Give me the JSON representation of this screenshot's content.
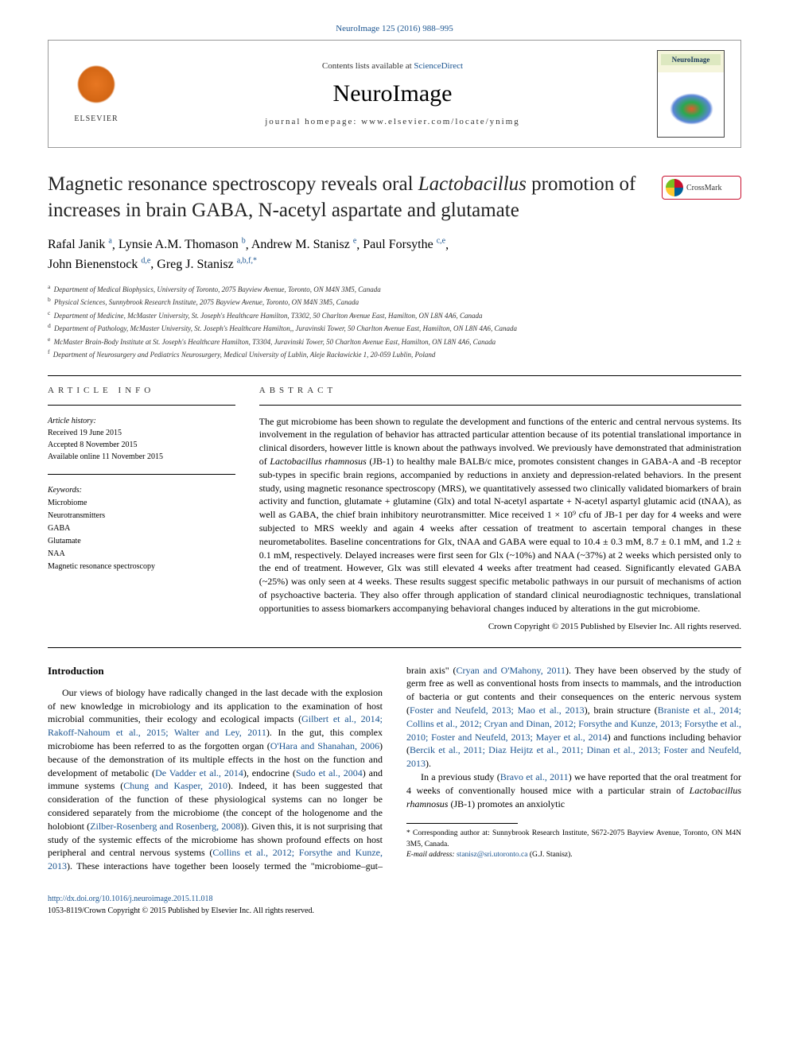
{
  "top_citation": "NeuroImage 125 (2016) 988–995",
  "header": {
    "contents_prefix": "Contents lists available at ",
    "contents_link": "ScienceDirect",
    "journal": "NeuroImage",
    "homepage_prefix": "journal homepage: ",
    "homepage": "www.elsevier.com/locate/ynimg",
    "elsevier_label": "ELSEVIER",
    "cover_title": "NeuroImage"
  },
  "crossmark_label": "CrossMark",
  "title_parts": {
    "pre": "Magnetic resonance spectroscopy reveals oral ",
    "italic": "Lactobacillus",
    "post": " promotion of increases in brain GABA, N-acetyl aspartate and glutamate"
  },
  "authors": [
    {
      "name": "Rafal Janik",
      "sup": "a"
    },
    {
      "name": "Lynsie A.M. Thomason",
      "sup": "b"
    },
    {
      "name": "Andrew M. Stanisz",
      "sup": "e"
    },
    {
      "name": "Paul Forsythe",
      "sup": "c,e"
    },
    {
      "name": "John Bienenstock",
      "sup": "d,e"
    },
    {
      "name": "Greg J. Stanisz",
      "sup": "a,b,f,*"
    }
  ],
  "affiliations": [
    {
      "key": "a",
      "text": "Department of Medical Biophysics, University of Toronto, 2075 Bayview Avenue, Toronto, ON M4N 3M5, Canada"
    },
    {
      "key": "b",
      "text": "Physical Sciences, Sunnybrook Research Institute, 2075 Bayview Avenue, Toronto, ON M4N 3M5, Canada"
    },
    {
      "key": "c",
      "text": "Department of Medicine, McMaster University, St. Joseph's Healthcare Hamilton, T3302, 50 Charlton Avenue East, Hamilton, ON L8N 4A6, Canada"
    },
    {
      "key": "d",
      "text": "Department of Pathology, McMaster University, St. Joseph's Healthcare Hamilton,, Juravinski Tower, 50 Charlton Avenue East, Hamilton, ON L8N 4A6, Canada"
    },
    {
      "key": "e",
      "text": "McMaster Brain-Body Institute at St. Joseph's Healthcare Hamilton, T3304, Juravinski Tower, 50 Charlton Avenue East, Hamilton, ON L8N 4A6, Canada"
    },
    {
      "key": "f",
      "text": "Department of Neurosurgery and Pediatrics Neurosurgery, Medical University of Lublin, Aleje Racławickie 1, 20-059 Lublin, Poland"
    }
  ],
  "article_info": {
    "heading": "article info",
    "history_label": "Article history:",
    "received": "Received 19 June 2015",
    "accepted": "Accepted 8 November 2015",
    "online": "Available online 11 November 2015",
    "keywords_label": "Keywords:",
    "keywords": [
      "Microbiome",
      "Neurotransmitters",
      "GABA",
      "Glutamate",
      "NAA",
      "Magnetic resonance spectroscopy"
    ]
  },
  "abstract": {
    "heading": "abstract",
    "text_pre": "The gut microbiome has been shown to regulate the development and functions of the enteric and central nervous systems. Its involvement in the regulation of behavior has attracted particular attention because of its potential translational importance in clinical disorders, however little is known about the pathways involved. We previously have demonstrated that administration of ",
    "text_em1": "Lactobacillus rhamnosus",
    "text_mid": " (JB-1) to healthy male BALB/c mice, promotes consistent changes in GABA-A and -B receptor sub-types in specific brain regions, accompanied by reductions in anxiety and depression-related behaviors. In the present study, using magnetic resonance spectroscopy (MRS), we quantitatively assessed two clinically validated biomarkers of brain activity and function, glutamate + glutamine (Glx) and total N-acetyl aspartate + N-acetyl aspartyl glutamic acid (tNAA), as well as GABA, the chief brain inhibitory neurotransmitter. Mice received 1 × 10⁹ cfu of JB-1 per day for 4 weeks and were subjected to MRS weekly and again 4 weeks after cessation of treatment to ascertain temporal changes in these neurometabolites. Baseline concentrations for Glx, tNAA and GABA were equal to 10.4 ± 0.3 mM, 8.7 ± 0.1 mM, and 1.2 ± 0.1 mM, respectively. Delayed increases were first seen for Glx (~10%) and NAA (~37%) at 2 weeks which persisted only to the end of treatment. However, Glx was still elevated 4 weeks after treatment had ceased. Significantly elevated GABA (~25%) was only seen at 4 weeks. These results suggest specific metabolic pathways in our pursuit of mechanisms of action of psychoactive bacteria. They also offer through application of standard clinical neurodiagnostic techniques, translational opportunities to assess biomarkers accompanying behavioral changes induced by alterations in the gut microbiome.",
    "copyright": "Crown Copyright © 2015 Published by Elsevier Inc. All rights reserved."
  },
  "introduction": {
    "heading": "Introduction",
    "para1_pre": "Our views of biology have radically changed in the last decade with the explosion of new knowledge in microbiology and its application to the examination of host microbial communities, their ecology and ecological impacts (",
    "para1_link1": "Gilbert et al., 2014; Rakoff-Nahoum et al., 2015; Walter and Ley, 2011",
    "para1_mid1": "). In the gut, this complex microbiome has been referred to as the forgotten organ (",
    "para1_link2": "O'Hara and Shanahan, 2006",
    "para1_mid2": ") because of the demonstration of its multiple effects in the host on the function and development of metabolic (",
    "para1_link3": "De Vadder et al., 2014",
    "para1_mid3": "), endocrine (",
    "para1_link4": "Sudo et al., 2004",
    "para1_mid4": ") and immune systems (",
    "para1_link5": "Chung and Kasper, 2010",
    "para1_mid5": "). Indeed, it has been suggested that consideration of the function of these physiological systems can no longer be considered separately from the microbiome (the concept of the hologenome and the holobiont (",
    "para1_link6": "Zilber-Rosenberg and Rosenberg, 2008",
    "para1_mid6": ")). Given this, it is not surprising that study of the systemic effects of the microbiome has shown profound effects on host peripheral and central nervous systems (",
    "para1_link7": "Collins et al., 2012; Forsythe and Kunze, 2013",
    "para1_mid7": "). These interactions have together been loosely termed the \"microbiome–gut–brain axis\" (",
    "para1_link8": "Cryan and O'Mahony, 2011",
    "para1_mid8": "). They have been observed by the study of germ free as well as conventional hosts from insects to mammals, and the introduction of bacteria or gut contents and their consequences on the enteric nervous system (",
    "para1_link9": "Foster and Neufeld, 2013; Mao et al., 2013",
    "para1_mid9": "), brain structure (",
    "para1_link10": "Braniste et al., 2014; Collins et al., 2012; Cryan and Dinan, 2012; Forsythe and Kunze, 2013; Forsythe et al., 2010; Foster and Neufeld, 2013; Mayer et al., 2014",
    "para1_mid10": ") and functions including behavior (",
    "para1_link11": "Bercik et al., 2011; Diaz Heijtz et al., 2011; Dinan et al., 2013; Foster and Neufeld, 2013",
    "para1_end": ").",
    "para2_pre": "In a previous study (",
    "para2_link1": "Bravo et al., 2011",
    "para2_mid": ") we have reported that the oral treatment for 4 weeks of conventionally housed mice with a particular strain of ",
    "para2_em": "Lactobacillus rhamnosus",
    "para2_end": " (JB-1) promotes an anxiolytic"
  },
  "footnotes": {
    "corr_pre": "* Corresponding author at: Sunnybrook Research Institute, S672-2075 Bayview Avenue, Toronto, ON M4N 3M5, Canada.",
    "email_label": "E-mail address: ",
    "email": "stanisz@sri.utoronto.ca",
    "email_name": " (G.J. Stanisz)."
  },
  "footer": {
    "doi": "http://dx.doi.org/10.1016/j.neuroimage.2015.11.018",
    "issn_copyright": "1053-8119/Crown Copyright © 2015 Published by Elsevier Inc. All rights reserved."
  },
  "colors": {
    "link": "#1a5490",
    "elsevier_orange": "#e87722",
    "crossmark_red": "#c8102e",
    "text": "#000000",
    "background": "#ffffff"
  }
}
